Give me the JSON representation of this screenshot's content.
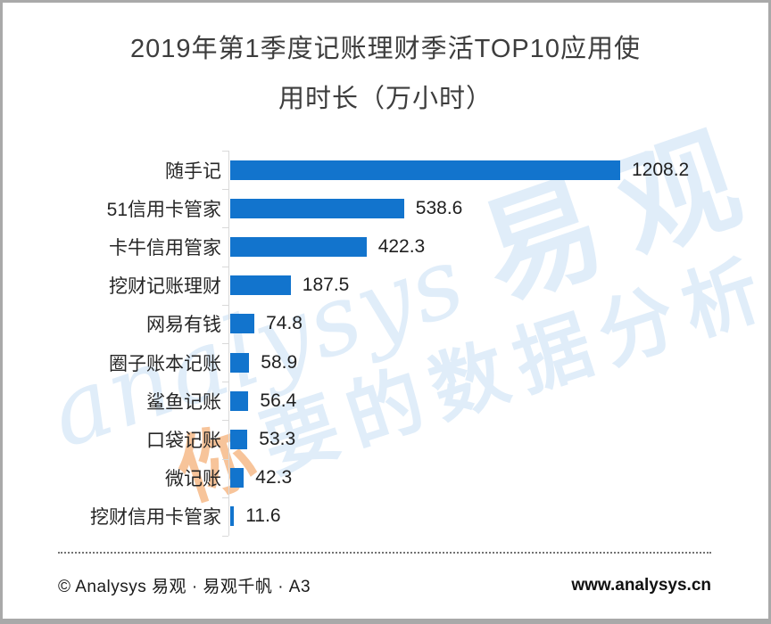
{
  "chart_data": {
    "type": "bar",
    "orientation": "horizontal",
    "title": "2019年第1季度记账理财季活TOP10应用使用时长（万小时）",
    "title_lines": [
      "2019年第1季度记账理财季活TOP10应用使",
      "用时长（万小时）"
    ],
    "unit": "万小时",
    "categories": [
      "随手记",
      "51信用卡管家",
      "卡牛信用管家",
      "挖财记账理财",
      "网易有钱",
      "圈子账本记账",
      "鲨鱼记账",
      "口袋记账",
      "微记账",
      "挖财信用卡管家"
    ],
    "values": [
      1208.2,
      538.6,
      422.3,
      187.5,
      74.8,
      58.9,
      56.4,
      53.3,
      42.3,
      11.6
    ],
    "value_labels": [
      "1208.2",
      "538.6",
      "422.3",
      "187.5",
      "74.8",
      "58.9",
      "56.4",
      "53.3",
      "42.3",
      "11.6"
    ],
    "xlim": [
      0,
      1260
    ],
    "bar_color": "#1274cd",
    "axis_color": "#d9d9d9",
    "grid": false,
    "legend": null,
    "value_label_position": "right-of-bar"
  },
  "watermark": {
    "brand_script": "analysys",
    "brand_cn": "易观",
    "tagline_lead": "你",
    "tagline_rest": "要的数据分析",
    "blue_color": "rgba(18,116,205,0.13)",
    "orange_color": "rgba(238,125,32,0.45)"
  },
  "footer": {
    "copyright": "© Analysys 易观 · 易观千帆 · A3",
    "website": "www.analysys.cn"
  }
}
